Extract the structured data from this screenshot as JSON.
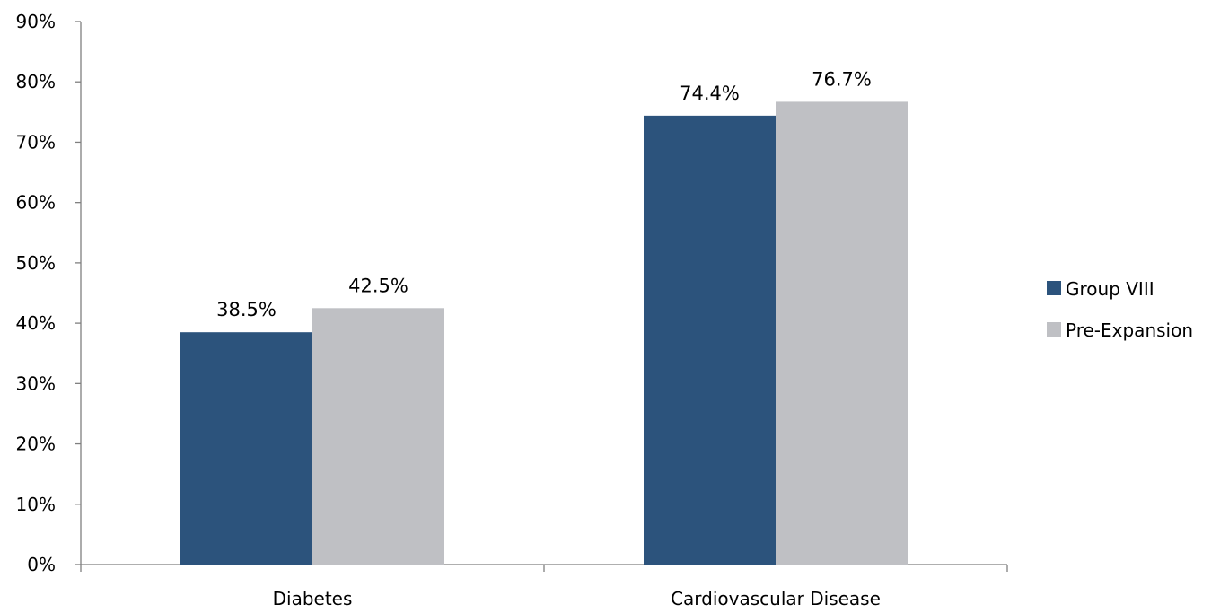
{
  "chart_data": {
    "type": "bar",
    "categories": [
      "Diabetes",
      "Cardiovascular Disease"
    ],
    "series": [
      {
        "name": "Group VIII",
        "color": "#2c537c",
        "values": [
          38.5,
          74.4
        ],
        "labels": [
          "38.5%",
          "74.4%"
        ]
      },
      {
        "name": "Pre-Expansion",
        "color": "#bfc0c4",
        "values": [
          42.5,
          76.7
        ],
        "labels": [
          "42.5%",
          "76.7%"
        ]
      }
    ],
    "ylim": [
      0,
      90
    ],
    "yticks": [
      "0%",
      "10%",
      "20%",
      "30%",
      "40%",
      "50%",
      "60%",
      "70%",
      "80%",
      "90%"
    ],
    "grid": false,
    "legend_position": "right",
    "title": "",
    "xlabel": "",
    "ylabel": ""
  }
}
